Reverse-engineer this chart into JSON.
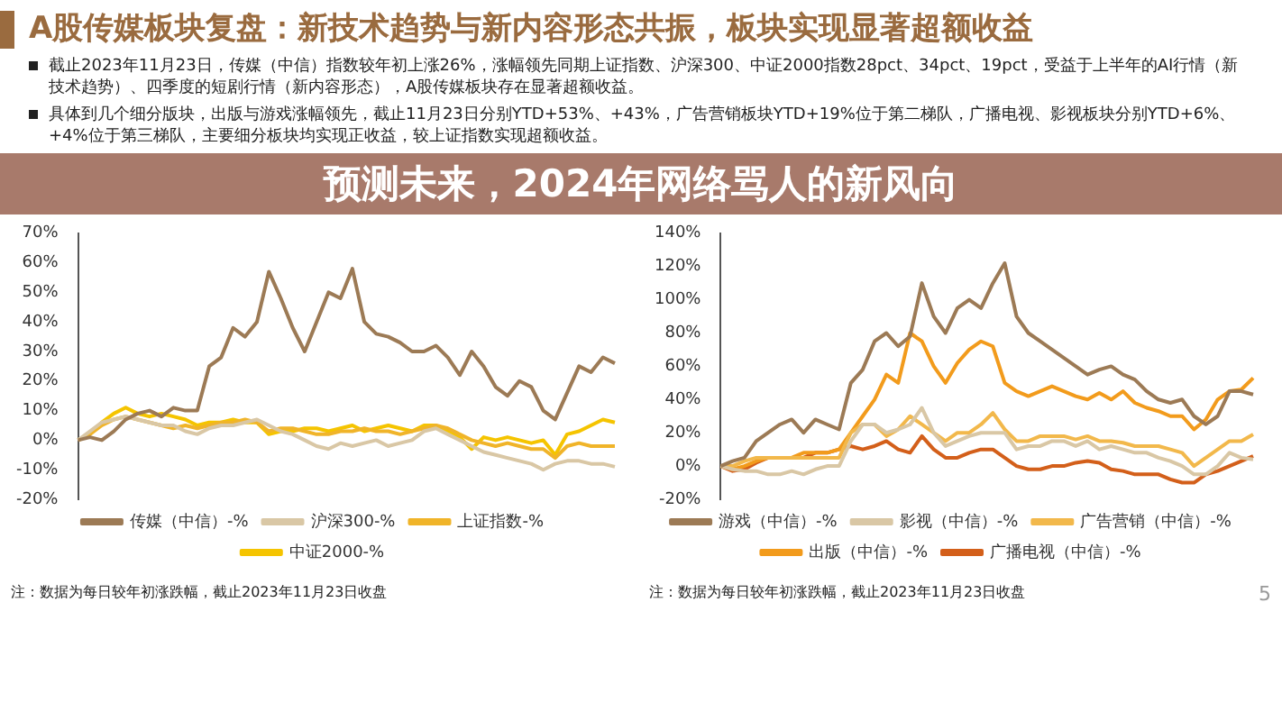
{
  "chart_data": [
    {
      "type": "line",
      "title": "A股传媒板块复盘：新技术趋势与新内容形态共振，板块实现显著超额收益",
      "subtitle": "预测未来，2024年网络骂人的新风向",
      "annotations": [
        "截止2023年11月23日，传媒（中信）指数较年初上涨26%，涨幅领先同期上证指数、沪深300、中证2000指数28pct、34pct、19pct，受益于上半年的AI行情（新技术趋势）、四季度的短剧行情（新内容形态），A股传媒板块存在显著超额收益。",
        "具体到几个细分版块，出版与游戏涨幅领先，截止11月23日分别YTD+53%、+43%，广告营销板块YTD+19%位于第二梯队，广播电视、影视板块分别YTD+6%、+4%位于第三梯队，主要细分板块均实现正收益，较上证指数实现超额收益。",
        "注：数据为每日较年初涨跌幅，截止2023年11月23日收盘"
      ],
      "categories": [
        null,
        null,
        null,
        null,
        null,
        null,
        null,
        null,
        null,
        null,
        null,
        null,
        null,
        null,
        null,
        null,
        null,
        null,
        null,
        null,
        null,
        null,
        null,
        null,
        null,
        null,
        null,
        null,
        null,
        null,
        null,
        null,
        null,
        null,
        null,
        null,
        null,
        null,
        null,
        null,
        null,
        null,
        null,
        null,
        null,
        null
      ],
      "series": [
        {
          "name": "传媒（中信）-%",
          "color": "#9c7a55",
          "values": [
            0,
            1,
            0,
            3,
            7,
            9,
            10,
            8,
            11,
            10,
            10,
            25,
            28,
            38,
            35,
            40,
            57,
            48,
            38,
            30,
            40,
            50,
            48,
            58,
            40,
            36,
            35,
            33,
            30,
            30,
            32,
            28,
            22,
            30,
            25,
            18,
            15,
            20,
            18,
            10,
            7,
            16,
            25,
            23,
            28,
            26
          ]
        },
        {
          "name": "沪深300-%",
          "color": "#d9c7a5",
          "values": [
            0,
            3,
            6,
            7,
            8,
            7,
            6,
            5,
            5,
            3,
            2,
            4,
            5,
            5,
            6,
            7,
            5,
            3,
            2,
            0,
            -2,
            -3,
            -1,
            -2,
            -1,
            0,
            -2,
            -1,
            0,
            3,
            4,
            2,
            0,
            -2,
            -4,
            -5,
            -6,
            -7,
            -8,
            -10,
            -8,
            -7,
            -7,
            -8,
            -8,
            -9
          ]
        },
        {
          "name": "上证指数-%",
          "color": "#f0b429",
          "values": [
            0,
            2,
            5,
            7,
            8,
            7,
            6,
            5,
            4,
            5,
            4,
            5,
            6,
            6,
            7,
            6,
            3,
            4,
            4,
            3,
            2,
            2,
            3,
            3,
            4,
            3,
            3,
            2,
            3,
            4,
            5,
            4,
            2,
            0,
            -1,
            -2,
            -1,
            -2,
            -3,
            -3,
            -6,
            -2,
            -1,
            -2,
            -2,
            -2
          ]
        },
        {
          "name": "中证2000-%",
          "color": "#f5c400",
          "values": [
            0,
            2,
            6,
            9,
            11,
            9,
            8,
            9,
            8,
            7,
            5,
            6,
            6,
            7,
            6,
            6,
            2,
            3,
            3,
            4,
            4,
            3,
            4,
            5,
            3,
            4,
            5,
            4,
            3,
            5,
            5,
            3,
            1,
            -3,
            1,
            0,
            1,
            0,
            -1,
            0,
            -5,
            2,
            3,
            5,
            7,
            6
          ]
        }
      ],
      "ylim": [
        -20,
        70
      ],
      "yticks": [
        {
          "value": -20,
          "label": "-20%"
        },
        {
          "value": -10,
          "label": "-10%"
        },
        {
          "value": 0,
          "label": "0%"
        },
        {
          "value": 10,
          "label": "10%"
        },
        {
          "value": 20,
          "label": "20%"
        },
        {
          "value": 30,
          "label": "30%"
        },
        {
          "value": 40,
          "label": "40%"
        },
        {
          "value": 50,
          "label": "50%"
        },
        {
          "value": 60,
          "label": "60%"
        },
        {
          "value": 70,
          "label": "70%"
        }
      ],
      "tick_labels": "y",
      "legend": "bottom",
      "marker": "none"
    },
    {
      "type": "line",
      "annotations": [
        "注：数据为每日较年初涨跌幅，截止2023年11月23日收盘",
        "5"
      ],
      "categories": [
        null,
        null,
        null,
        null,
        null,
        null,
        null,
        null,
        null,
        null,
        null,
        null,
        null,
        null,
        null,
        null,
        null,
        null,
        null,
        null,
        null,
        null,
        null,
        null,
        null,
        null,
        null,
        null,
        null,
        null,
        null,
        null,
        null,
        null,
        null,
        null,
        null,
        null,
        null,
        null,
        null,
        null,
        null,
        null,
        null,
        null
      ],
      "series": [
        {
          "name": "游戏（中信）-%",
          "color": "#9c7a55",
          "values": [
            0,
            3,
            5,
            15,
            20,
            25,
            28,
            20,
            28,
            25,
            22,
            50,
            58,
            75,
            80,
            72,
            78,
            110,
            90,
            80,
            95,
            100,
            95,
            110,
            122,
            90,
            80,
            75,
            70,
            65,
            60,
            55,
            58,
            60,
            55,
            52,
            45,
            40,
            38,
            40,
            30,
            25,
            30,
            45,
            45,
            43
          ]
        },
        {
          "name": "影视（中信）-%",
          "color": "#d9c7a5",
          "values": [
            0,
            -2,
            -3,
            -3,
            -5,
            -5,
            -3,
            -5,
            -2,
            0,
            0,
            15,
            25,
            25,
            20,
            22,
            25,
            35,
            20,
            12,
            15,
            18,
            20,
            20,
            20,
            10,
            12,
            12,
            15,
            15,
            12,
            15,
            10,
            12,
            10,
            8,
            8,
            5,
            3,
            0,
            -5,
            -5,
            0,
            8,
            5,
            4
          ]
        },
        {
          "name": "广告营销（中信）-%",
          "color": "#f2b84b",
          "values": [
            0,
            0,
            3,
            5,
            5,
            5,
            5,
            5,
            5,
            5,
            5,
            20,
            25,
            25,
            18,
            22,
            30,
            25,
            20,
            15,
            20,
            20,
            25,
            32,
            22,
            15,
            15,
            18,
            18,
            18,
            16,
            18,
            15,
            15,
            14,
            12,
            12,
            12,
            10,
            8,
            0,
            5,
            10,
            15,
            15,
            19
          ]
        },
        {
          "name": "出版（中信）-%",
          "color": "#f29b1c",
          "values": [
            0,
            -2,
            0,
            3,
            5,
            5,
            5,
            8,
            8,
            8,
            10,
            20,
            30,
            40,
            55,
            50,
            80,
            75,
            60,
            50,
            62,
            70,
            75,
            72,
            50,
            45,
            42,
            45,
            48,
            45,
            42,
            40,
            44,
            40,
            45,
            38,
            35,
            33,
            30,
            30,
            22,
            28,
            40,
            45,
            46,
            53
          ]
        },
        {
          "name": "广播电视（中信）-%",
          "color": "#d35f1a",
          "values": [
            0,
            -3,
            -2,
            2,
            5,
            5,
            5,
            5,
            8,
            8,
            10,
            12,
            10,
            12,
            15,
            10,
            8,
            18,
            10,
            5,
            5,
            8,
            10,
            10,
            5,
            0,
            -2,
            -2,
            0,
            0,
            2,
            3,
            2,
            -2,
            -3,
            -5,
            -5,
            -5,
            -8,
            -10,
            -10,
            -5,
            -3,
            0,
            3,
            6
          ]
        }
      ],
      "ylim": [
        -20,
        140
      ],
      "yticks": [
        {
          "value": -20,
          "label": "-20%"
        },
        {
          "value": 0,
          "label": "0%"
        },
        {
          "value": 20,
          "label": "20%"
        },
        {
          "value": 40,
          "label": "40%"
        },
        {
          "value": 60,
          "label": "60%"
        },
        {
          "value": 80,
          "label": "80%"
        },
        {
          "value": 100,
          "label": "100%"
        },
        {
          "value": 120,
          "label": "120%"
        },
        {
          "value": 140,
          "label": "140%"
        }
      ],
      "tick_labels": "y",
      "legend": "bottom",
      "marker": "none"
    }
  ]
}
